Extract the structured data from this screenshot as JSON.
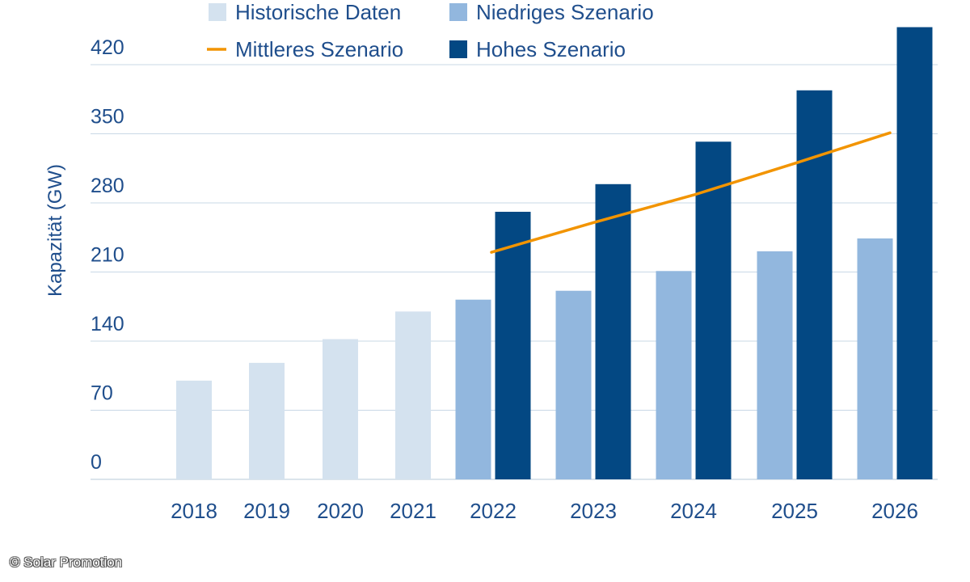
{
  "credit": "© Solar Promotion",
  "colors": {
    "historisch": "#d4e2ef",
    "niedrig": "#92b7de",
    "hoch": "#034883",
    "mittel": "#f29400",
    "axis_text": "#1f4e8c",
    "grid": "#c9d8e6"
  },
  "chart_data": {
    "type": "bar",
    "ylabel": "Kapazität (GW)",
    "xlabel": "",
    "title": "",
    "ylim": [
      0,
      455
    ],
    "yticks": [
      0,
      70,
      140,
      210,
      280,
      350,
      420
    ],
    "categories": [
      "2018",
      "2019",
      "2020",
      "2021",
      "2022",
      "2023",
      "2024",
      "2025",
      "2026"
    ],
    "legend": {
      "placement": "top",
      "entries": [
        {
          "label": "Historische Daten",
          "kind": "box",
          "color_key": "historisch"
        },
        {
          "label": "Niedriges Szenario",
          "kind": "box",
          "color_key": "niedrig"
        },
        {
          "label": "Mittleres Szenario",
          "kind": "line",
          "color_key": "mittel"
        },
        {
          "label": "Hohes Szenario",
          "kind": "box",
          "color_key": "hoch"
        }
      ]
    },
    "series": [
      {
        "name": "Historische Daten",
        "type": "bar",
        "values": [
          100,
          118,
          142,
          170,
          null,
          null,
          null,
          null,
          null
        ]
      },
      {
        "name": "Niedriges Szenario",
        "type": "bar",
        "values": [
          null,
          null,
          null,
          null,
          182,
          191,
          211,
          231,
          244
        ]
      },
      {
        "name": "Mittleres Szenario",
        "type": "line",
        "values": [
          null,
          null,
          null,
          null,
          230,
          260,
          288,
          320,
          351
        ]
      },
      {
        "name": "Hohes Szenario",
        "type": "bar",
        "values": [
          null,
          null,
          null,
          null,
          271,
          299,
          342,
          394,
          458
        ]
      }
    ]
  }
}
